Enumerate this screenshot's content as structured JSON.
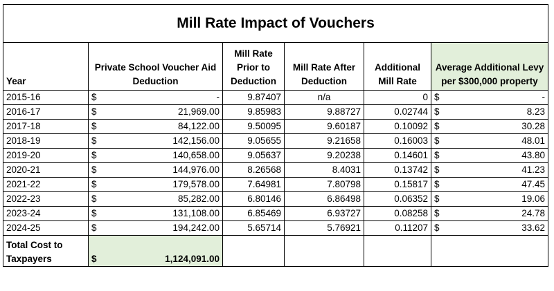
{
  "title": "Mill Rate Impact of Vouchers",
  "headers": {
    "year": "Year",
    "voucher": "Private School Voucher Aid Deduction",
    "prior": "Mill Rate Prior to Deduction",
    "after": "Mill Rate After Deduction",
    "additional": "Additional Mill Rate",
    "levy": "Average Additional Levy per $300,000 property"
  },
  "rows": [
    {
      "year": "2015-16",
      "cur": "$",
      "voucher": "-",
      "prior": "9.87407",
      "after": "n/a",
      "additional": "0",
      "levy_cur": "$",
      "levy": "-"
    },
    {
      "year": "2016-17",
      "cur": "$",
      "voucher": "21,969.00",
      "prior": "9.85983",
      "after": "9.88727",
      "additional": "0.02744",
      "levy_cur": "$",
      "levy": "8.23"
    },
    {
      "year": "2017-18",
      "cur": "$",
      "voucher": "84,122.00",
      "prior": "9.50095",
      "after": "9.60187",
      "additional": "0.10092",
      "levy_cur": "$",
      "levy": "30.28"
    },
    {
      "year": "2018-19",
      "cur": "$",
      "voucher": "142,156.00",
      "prior": "9.05655",
      "after": "9.21658",
      "additional": "0.16003",
      "levy_cur": "$",
      "levy": "48.01"
    },
    {
      "year": "2019-20",
      "cur": "$",
      "voucher": "140,658.00",
      "prior": "9.05637",
      "after": "9.20238",
      "additional": "0.14601",
      "levy_cur": "$",
      "levy": "43.80"
    },
    {
      "year": "2020-21",
      "cur": "$",
      "voucher": "144,976.00",
      "prior": "8.26568",
      "after": "8.4031",
      "additional": "0.13742",
      "levy_cur": "$",
      "levy": "41.23"
    },
    {
      "year": "2021-22",
      "cur": "$",
      "voucher": "179,578.00",
      "prior": "7.64981",
      "after": "7.80798",
      "additional": "0.15817",
      "levy_cur": "$",
      "levy": "47.45"
    },
    {
      "year": "2022-23",
      "cur": "$",
      "voucher": "85,282.00",
      "prior": "6.80146",
      "after": "6.86498",
      "additional": "0.06352",
      "levy_cur": "$",
      "levy": "19.06"
    },
    {
      "year": "2023-24",
      "cur": "$",
      "voucher": "131,108.00",
      "prior": "6.85469",
      "after": "6.93727",
      "additional": "0.08258",
      "levy_cur": "$",
      "levy": "24.78"
    },
    {
      "year": "2024-25",
      "cur": "$",
      "voucher": "194,242.00",
      "prior": "5.65714",
      "after": "5.76921",
      "additional": "0.11207",
      "levy_cur": "$",
      "levy": "33.62"
    }
  ],
  "total": {
    "label": "Total Cost to Taxpayers",
    "cur": "$",
    "value": "1,124,091.00"
  },
  "colors": {
    "highlight": "#e2efda",
    "border": "#000000"
  }
}
